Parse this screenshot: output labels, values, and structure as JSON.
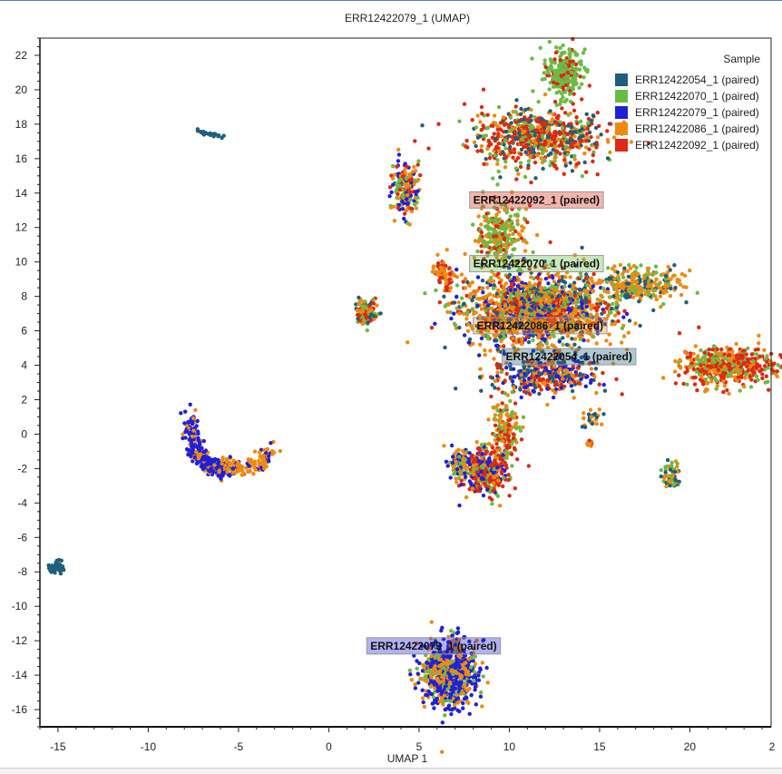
{
  "chart_data": {
    "type": "scatter",
    "title": "ERR12422079_1 (UMAP)",
    "xlabel": "UMAP 1",
    "ylabel": "",
    "xlim": [
      -16,
      24.5
    ],
    "ylim": [
      -17,
      23
    ],
    "xticks": [
      -15,
      -10,
      -5,
      0,
      5,
      10,
      15,
      20
    ],
    "xtick_labels": [
      "-15",
      "-10",
      "-5",
      "0",
      "5",
      "10",
      "15",
      "20"
    ],
    "yticks": [
      22,
      20,
      18,
      16,
      14,
      12,
      10,
      8,
      6,
      4,
      2,
      0,
      -2,
      -4,
      -6,
      -8,
      -10,
      -12,
      -14,
      -16
    ],
    "ytick_labels": [
      "22",
      "20",
      "18",
      "16",
      "14",
      "12",
      "10",
      "8",
      "6",
      "4",
      "2",
      "0",
      "-2",
      "-4",
      "-6",
      "-8",
      "-10",
      "-12",
      "-14",
      "-16"
    ],
    "x_edge_label": "2",
    "legend": {
      "title": "Sample",
      "placement": "top-right",
      "entries": [
        {
          "name": "ERR12422054_1 (paired)",
          "color": "#1f5f7a"
        },
        {
          "name": "ERR12422070_1 (paired)",
          "color": "#6abb45"
        },
        {
          "name": "ERR12422079_1 (paired)",
          "color": "#2020d8"
        },
        {
          "name": "ERR12422086_1 (paired)",
          "color": "#ee8a12"
        },
        {
          "name": "ERR12422092_1 (paired)",
          "color": "#dd2a10"
        }
      ]
    },
    "cluster_labels": [
      {
        "text": "ERR12422092_1 (paired)",
        "x": 7.8,
        "y": 13.6,
        "color": "#dd2a10"
      },
      {
        "text": "ERR12422070_1 (paired)",
        "x": 7.8,
        "y": 9.9,
        "color": "#6abb45"
      },
      {
        "text": "ERR12422086_1 (paired)",
        "x": 8.0,
        "y": 6.3,
        "color": "#ee8a12"
      },
      {
        "text": "ERR12422054_1 (paired)",
        "x": 9.6,
        "y": 4.5,
        "color": "#1f5f7a"
      },
      {
        "text": "ERR12422079_1 (paired)",
        "x": 2.1,
        "y": -12.3,
        "color": "#2020d8"
      }
    ],
    "clusters": [
      {
        "x": 13.0,
        "y": 21.0,
        "rx": 1.0,
        "ry": 1.4,
        "n": 260,
        "colors": [
          "#6abb45",
          "#6abb45",
          "#6abb45",
          "#dd2a10"
        ]
      },
      {
        "x": 11.5,
        "y": 17.2,
        "rx": 3.8,
        "ry": 1.6,
        "n": 700,
        "colors": [
          "#dd2a10",
          "#dd2a10",
          "#6abb45",
          "#ee8a12",
          "#1f5f7a"
        ]
      },
      {
        "x": 4.3,
        "y": 14.3,
        "rx": 0.7,
        "ry": 1.6,
        "n": 180,
        "colors": [
          "#ee8a12",
          "#6abb45",
          "#dd2a10",
          "#2020d8"
        ]
      },
      {
        "x": 9.5,
        "y": 11.5,
        "rx": 1.3,
        "ry": 1.8,
        "n": 260,
        "colors": [
          "#6abb45",
          "#6abb45",
          "#dd2a10",
          "#ee8a12"
        ]
      },
      {
        "x": 11.5,
        "y": 7.2,
        "rx": 4.2,
        "ry": 2.2,
        "n": 1500,
        "colors": [
          "#ee8a12",
          "#ee8a12",
          "#ee8a12",
          "#1f5f7a",
          "#6abb45",
          "#dd2a10",
          "#2020d8"
        ]
      },
      {
        "x": 17.2,
        "y": 8.7,
        "rx": 2.2,
        "ry": 1.2,
        "n": 260,
        "colors": [
          "#ee8a12",
          "#ee8a12",
          "#1f5f7a",
          "#6abb45"
        ]
      },
      {
        "x": 6.4,
        "y": 9.2,
        "rx": 0.6,
        "ry": 0.8,
        "n": 60,
        "colors": [
          "#ee8a12",
          "#dd2a10"
        ]
      },
      {
        "x": 12.0,
        "y": 3.4,
        "rx": 3.0,
        "ry": 1.0,
        "n": 350,
        "colors": [
          "#ee8a12",
          "#1f5f7a",
          "#2020d8",
          "#dd2a10"
        ]
      },
      {
        "x": 22.0,
        "y": 3.9,
        "rx": 2.6,
        "ry": 1.1,
        "n": 450,
        "colors": [
          "#dd2a10",
          "#dd2a10",
          "#6abb45",
          "#ee8a12"
        ]
      },
      {
        "x": 2.1,
        "y": 7.1,
        "rx": 0.6,
        "ry": 0.7,
        "n": 110,
        "colors": [
          "#6abb45",
          "#dd2a10",
          "#ee8a12",
          "#1f5f7a"
        ]
      },
      {
        "x": 9.8,
        "y": 0.2,
        "rx": 0.8,
        "ry": 1.8,
        "n": 180,
        "colors": [
          "#6abb45",
          "#dd2a10",
          "#ee8a12"
        ]
      },
      {
        "x": 8.6,
        "y": -2.2,
        "rx": 1.2,
        "ry": 1.4,
        "n": 350,
        "colors": [
          "#dd2a10",
          "#dd2a10",
          "#2020d8",
          "#6abb45",
          "#ee8a12"
        ]
      },
      {
        "x": 7.2,
        "y": -1.8,
        "rx": 0.6,
        "ry": 0.9,
        "n": 90,
        "colors": [
          "#ee8a12",
          "#2020d8",
          "#6abb45"
        ]
      },
      {
        "x": 6.7,
        "y": -13.9,
        "rx": 1.5,
        "ry": 1.9,
        "n": 750,
        "colors": [
          "#2020d8",
          "#2020d8",
          "#2020d8",
          "#ee8a12",
          "#ee8a12",
          "#6abb45"
        ]
      },
      {
        "x": 19.0,
        "y": -2.3,
        "rx": 0.45,
        "ry": 0.8,
        "n": 60,
        "colors": [
          "#6abb45",
          "#ee8a12",
          "#1f5f7a"
        ]
      },
      {
        "x": -15.0,
        "y": -7.7,
        "rx": 0.45,
        "ry": 0.3,
        "n": 60,
        "colors": [
          "#1f5f7a"
        ]
      },
      {
        "x": 14.6,
        "y": 0.9,
        "rx": 0.6,
        "ry": 0.6,
        "n": 25,
        "colors": [
          "#ee8a12",
          "#1f5f7a"
        ]
      },
      {
        "x": 14.5,
        "y": -0.6,
        "rx": 0.25,
        "ry": 0.3,
        "n": 10,
        "colors": [
          "#ee8a12",
          "#dd2a10"
        ]
      }
    ],
    "arcs": [
      {
        "x0": -7.6,
        "y0": 1.2,
        "cx": -7.7,
        "cy": -2.2,
        "x1": -5.6,
        "y1": -2.1,
        "w": 0.7,
        "n": 260,
        "colors": [
          "#2020d8",
          "#2020d8",
          "#2020d8",
          "#ee8a12"
        ]
      },
      {
        "x0": -5.9,
        "y0": -1.6,
        "cx": -4.2,
        "cy": -2.7,
        "x1": -3.1,
        "y1": -0.8,
        "w": 0.7,
        "n": 120,
        "colors": [
          "#ee8a12",
          "#ee8a12",
          "#ee8a12",
          "#2020d8"
        ]
      },
      {
        "x0": -7.4,
        "y0": 17.7,
        "cx": -6.8,
        "cy": 17.4,
        "x1": -5.8,
        "y1": 17.3,
        "w": 0.15,
        "n": 25,
        "colors": [
          "#1f5f7a"
        ]
      }
    ]
  }
}
